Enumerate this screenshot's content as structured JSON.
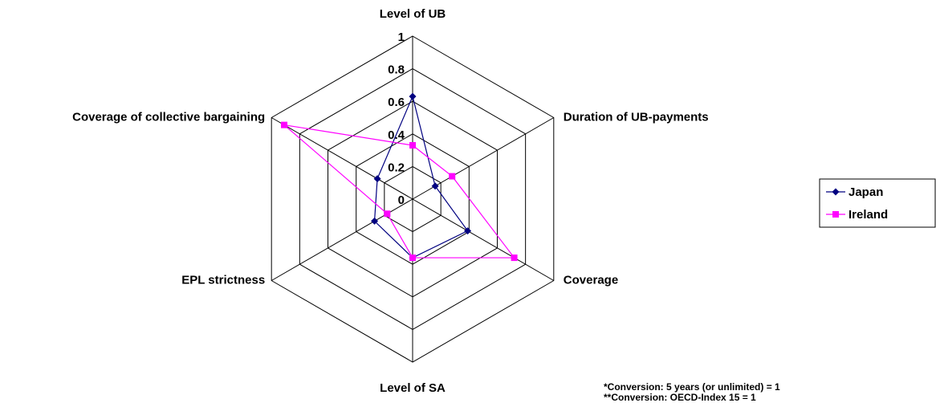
{
  "chart_data": {
    "type": "radar",
    "categories": [
      "Level of UB",
      "Duration of UB-payments",
      "Coverage",
      "Level of SA",
      "EPL strictness",
      "Coverage of collective bargaining"
    ],
    "series": [
      {
        "name": "Japan",
        "color": "#000080",
        "marker": "diamond",
        "values": [
          0.63,
          0.16,
          0.39,
          0.36,
          0.27,
          0.25
        ]
      },
      {
        "name": "Ireland",
        "color": "#ff00ff",
        "marker": "square",
        "values": [
          0.33,
          0.28,
          0.72,
          0.36,
          0.18,
          0.91
        ]
      }
    ],
    "rlim": [
      0,
      1
    ],
    "rticks": [
      0,
      0.2,
      0.4,
      0.6,
      0.8,
      1
    ],
    "legend": "right",
    "notes": [
      "*Conversion: 5 years (or unlimited) = 1",
      "**Conversion: OECD-Index 15 = 1"
    ]
  }
}
